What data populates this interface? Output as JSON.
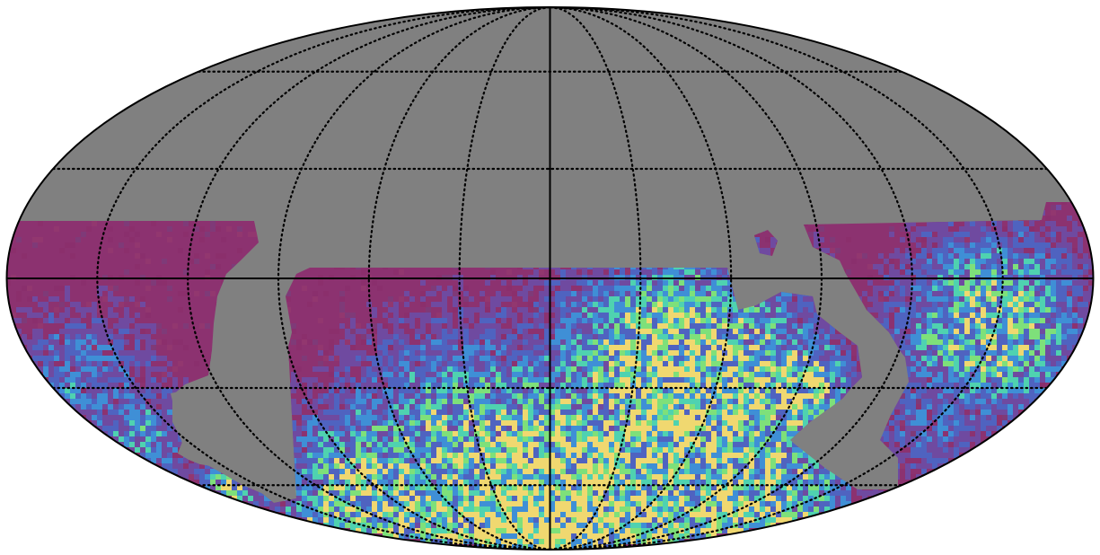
{
  "map": {
    "projection": "mollweide",
    "colors": {
      "masked": "#808080",
      "background": "#ffffff",
      "base": "#8c3270",
      "base_variants": [
        "#8a2f6d",
        "#92376f",
        "#7f3a78",
        "#8b2f6c"
      ],
      "low": "#6f4aa0",
      "mid_low": "#4f63c0",
      "mid": "#3f8fd6",
      "mid_high": "#4fd2b0",
      "high": "#7ee07a",
      "peak": "#f0d870",
      "outline": "#000000",
      "graticule": "#000000"
    },
    "graticule": {
      "style": "dotted",
      "meridian_step_deg": 30,
      "parallel_step_deg": 30,
      "solid_lines": [
        "equator",
        "central-meridian"
      ]
    }
  }
}
